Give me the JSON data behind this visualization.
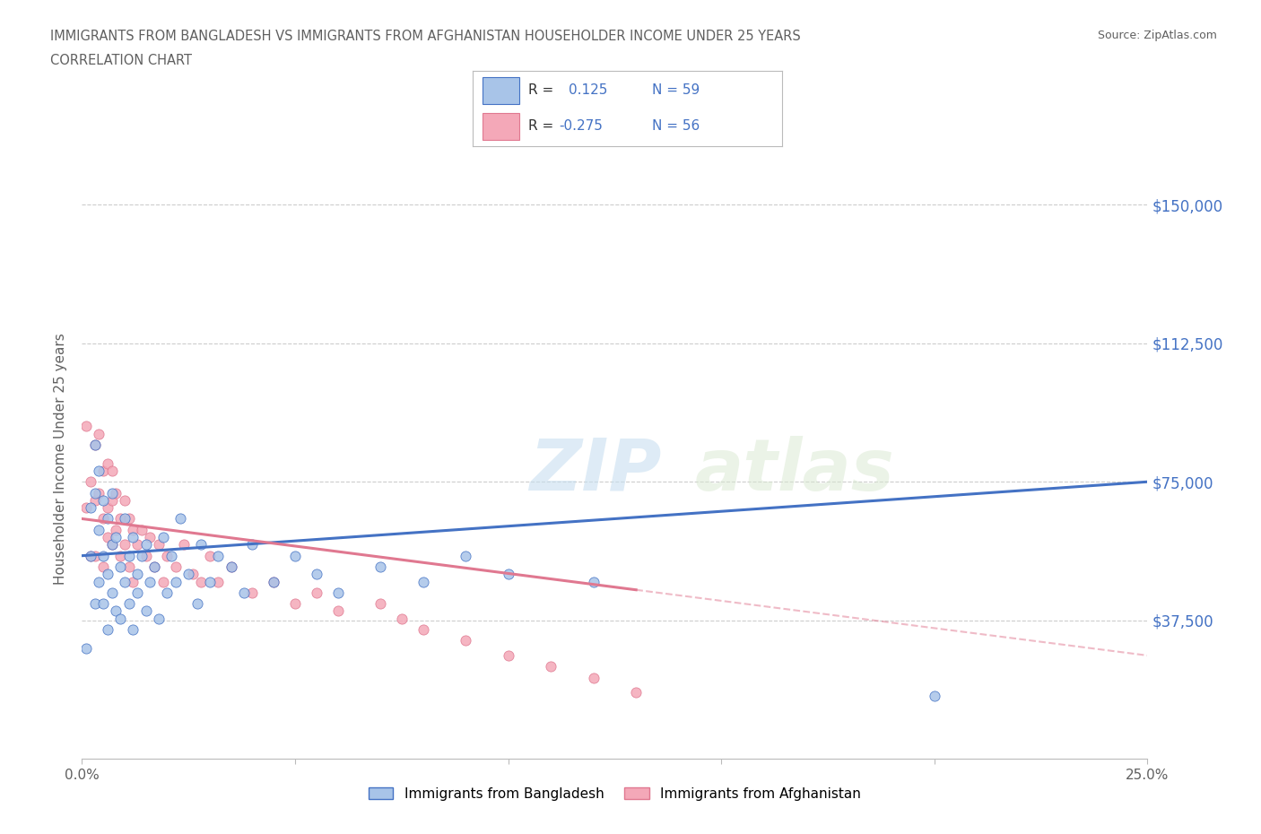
{
  "title_line1": "IMMIGRANTS FROM BANGLADESH VS IMMIGRANTS FROM AFGHANISTAN HOUSEHOLDER INCOME UNDER 25 YEARS",
  "title_line2": "CORRELATION CHART",
  "source_text": "Source: ZipAtlas.com",
  "watermark_zip": "ZIP",
  "watermark_atlas": "atlas",
  "ylabel": "Householder Income Under 25 years",
  "xlim": [
    0.0,
    0.25
  ],
  "ylim": [
    0,
    162500
  ],
  "ytick_vals": [
    0,
    37500,
    75000,
    112500,
    150000
  ],
  "ytick_labels": [
    "",
    "$37,500",
    "$75,000",
    "$112,500",
    "$150,000"
  ],
  "xtick_vals": [
    0.0,
    0.05,
    0.1,
    0.15,
    0.2,
    0.25
  ],
  "xtick_labels": [
    "0.0%",
    "",
    "",
    "",
    "",
    "25.0%"
  ],
  "color_bd": "#a8c4e8",
  "color_af": "#f4a8b8",
  "edge_bd": "#4472c4",
  "edge_af": "#e07890",
  "line_bd": "#4472c4",
  "line_af": "#e07890",
  "title_color": "#606060",
  "right_label_color": "#4472c4",
  "grid_color": "#cccccc",
  "bg": "#ffffff",
  "bd_x": [
    0.001,
    0.002,
    0.002,
    0.003,
    0.003,
    0.003,
    0.004,
    0.004,
    0.004,
    0.005,
    0.005,
    0.005,
    0.006,
    0.006,
    0.006,
    0.007,
    0.007,
    0.007,
    0.008,
    0.008,
    0.009,
    0.009,
    0.01,
    0.01,
    0.011,
    0.011,
    0.012,
    0.012,
    0.013,
    0.013,
    0.014,
    0.015,
    0.015,
    0.016,
    0.017,
    0.018,
    0.019,
    0.02,
    0.021,
    0.022,
    0.023,
    0.025,
    0.027,
    0.028,
    0.03,
    0.032,
    0.035,
    0.038,
    0.04,
    0.045,
    0.05,
    0.055,
    0.06,
    0.07,
    0.08,
    0.09,
    0.1,
    0.12,
    0.2
  ],
  "bd_y": [
    30000,
    55000,
    68000,
    42000,
    72000,
    85000,
    48000,
    62000,
    78000,
    55000,
    70000,
    42000,
    50000,
    65000,
    35000,
    58000,
    45000,
    72000,
    40000,
    60000,
    52000,
    38000,
    65000,
    48000,
    55000,
    42000,
    60000,
    35000,
    50000,
    45000,
    55000,
    40000,
    58000,
    48000,
    52000,
    38000,
    60000,
    45000,
    55000,
    48000,
    65000,
    50000,
    42000,
    58000,
    48000,
    55000,
    52000,
    45000,
    58000,
    48000,
    55000,
    50000,
    45000,
    52000,
    48000,
    55000,
    50000,
    48000,
    17000
  ],
  "af_x": [
    0.001,
    0.001,
    0.002,
    0.002,
    0.003,
    0.003,
    0.003,
    0.004,
    0.004,
    0.005,
    0.005,
    0.005,
    0.006,
    0.006,
    0.006,
    0.007,
    0.007,
    0.007,
    0.008,
    0.008,
    0.009,
    0.009,
    0.01,
    0.01,
    0.011,
    0.011,
    0.012,
    0.012,
    0.013,
    0.014,
    0.015,
    0.016,
    0.017,
    0.018,
    0.019,
    0.02,
    0.022,
    0.024,
    0.026,
    0.028,
    0.03,
    0.032,
    0.035,
    0.04,
    0.045,
    0.05,
    0.055,
    0.06,
    0.07,
    0.075,
    0.08,
    0.09,
    0.1,
    0.11,
    0.12,
    0.13
  ],
  "af_y": [
    90000,
    68000,
    75000,
    55000,
    85000,
    70000,
    55000,
    72000,
    88000,
    65000,
    78000,
    52000,
    68000,
    80000,
    60000,
    70000,
    58000,
    78000,
    62000,
    72000,
    65000,
    55000,
    70000,
    58000,
    65000,
    52000,
    62000,
    48000,
    58000,
    62000,
    55000,
    60000,
    52000,
    58000,
    48000,
    55000,
    52000,
    58000,
    50000,
    48000,
    55000,
    48000,
    52000,
    45000,
    48000,
    42000,
    45000,
    40000,
    42000,
    38000,
    35000,
    32000,
    28000,
    25000,
    22000,
    18000
  ]
}
